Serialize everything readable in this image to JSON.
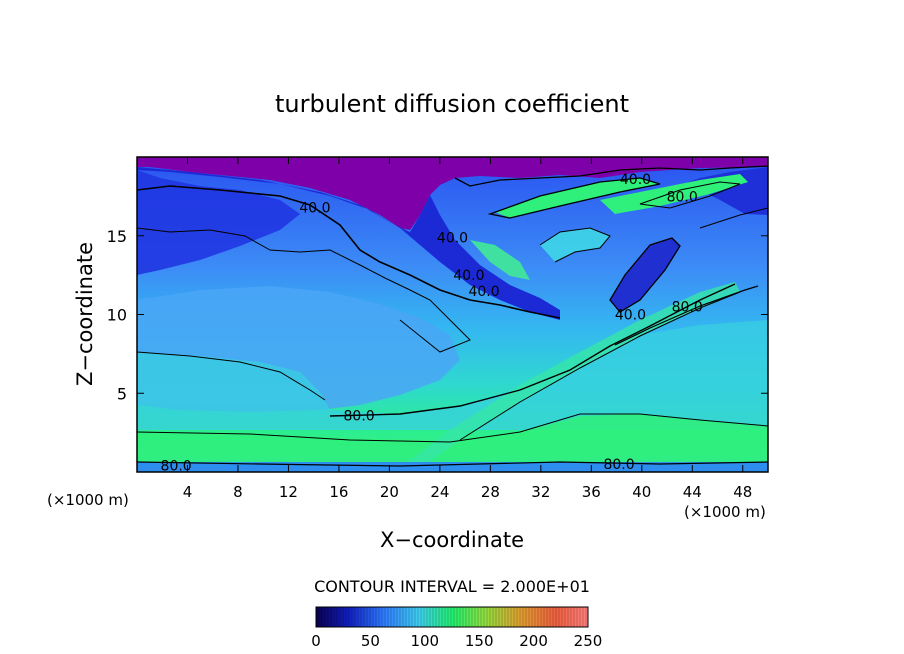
{
  "chart_data": {
    "type": "heatmap",
    "title": "turbulent diffusion coefficient",
    "xlabel": "X−coordinate",
    "ylabel": "Z−coordinate",
    "x_unit": "(×1000 m)",
    "x_unit_right": "(×1000 m)",
    "xlim": [
      0,
      50
    ],
    "ylim": [
      0,
      20
    ],
    "xticks": [
      4,
      8,
      12,
      16,
      20,
      24,
      28,
      32,
      36,
      40,
      44,
      48
    ],
    "yticks": [
      5,
      10,
      15
    ],
    "contour_interval_text": "CONTOUR INTERVAL = 2.000E+01",
    "contour_labels": [
      {
        "text": "40.0",
        "x": 14.1,
        "z": 16.8
      },
      {
        "text": "40.0",
        "x": 25.0,
        "z": 14.9
      },
      {
        "text": "40.0",
        "x": 26.3,
        "z": 12.5
      },
      {
        "text": "40.0",
        "x": 27.5,
        "z": 11.5
      },
      {
        "text": "40.0",
        "x": 39.1,
        "z": 10.0
      },
      {
        "text": "40.0",
        "x": 39.5,
        "z": 18.6
      },
      {
        "text": "80.0",
        "x": 43.2,
        "z": 17.5
      },
      {
        "text": "80.0",
        "x": 43.6,
        "z": 10.5
      },
      {
        "text": "80.0",
        "x": 17.6,
        "z": 3.6
      },
      {
        "text": "80.0",
        "x": 3.1,
        "z": 0.4
      },
      {
        "text": "80.0",
        "x": 38.2,
        "z": 0.5
      }
    ],
    "colorbar": {
      "min": 0,
      "max": 250,
      "ticks": [
        0,
        50,
        100,
        150,
        200,
        250
      ],
      "colors": [
        "#0a0050",
        "#1020c0",
        "#2f7cff",
        "#3fd0f0",
        "#20f070",
        "#90e040",
        "#e0a030",
        "#f06040",
        "#ff8080"
      ]
    },
    "colors": {
      "top_layer": "#7e00a8",
      "low": "#1a2bd8",
      "mid": "#3f8cf5",
      "cyan": "#33c9e8",
      "green": "#2ef07a"
    }
  }
}
